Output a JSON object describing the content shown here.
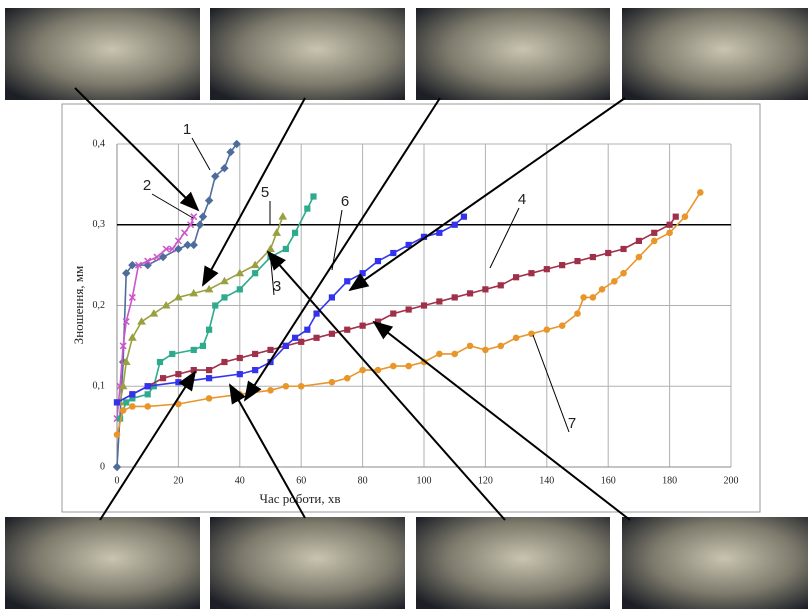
{
  "chart_data": {
    "type": "line",
    "xlabel": "Час роботи, хв",
    "ylabel": "Зношення, мм",
    "xlim": [
      0,
      200
    ],
    "xticks": [
      0,
      20,
      40,
      60,
      80,
      100,
      120,
      140,
      160,
      180,
      200
    ],
    "ylim": [
      0,
      0.4
    ],
    "yticks": [
      0,
      {
        "value": 0.1,
        "label": "0,1"
      },
      {
        "value": 0.2,
        "label": "0,2"
      },
      {
        "value": 0.3,
        "label": "0,3"
      },
      {
        "value": 0.4,
        "label": "0,4"
      }
    ],
    "grid": true,
    "reference_line": 0.3,
    "series": [
      {
        "name": "1",
        "color": "#4f6d9a",
        "marker": "diamond",
        "x": [
          0,
          2,
          3,
          5,
          10,
          15,
          20,
          23,
          25,
          27,
          28,
          30,
          32,
          35,
          37,
          39
        ],
        "values": [
          0,
          0.13,
          0.24,
          0.25,
          0.25,
          0.26,
          0.27,
          0.275,
          0.275,
          0.3,
          0.31,
          0.33,
          0.36,
          0.37,
          0.39,
          0.4
        ]
      },
      {
        "name": "2",
        "color": "#cc55cc",
        "marker": "x",
        "x": [
          0,
          1,
          2,
          3,
          5,
          7,
          10,
          13,
          16,
          18,
          20,
          22,
          24,
          25
        ],
        "values": [
          0.06,
          0.1,
          0.15,
          0.18,
          0.21,
          0.25,
          0.255,
          0.26,
          0.27,
          0.27,
          0.28,
          0.29,
          0.3,
          0.31
        ]
      },
      {
        "name": "3",
        "color": "#2eaa8c",
        "marker": "square",
        "x": [
          1,
          3,
          5,
          10,
          12,
          14,
          18,
          25,
          28,
          30,
          32,
          35,
          40,
          45,
          50,
          55,
          58,
          62,
          64
        ],
        "values": [
          0.06,
          0.08,
          0.085,
          0.09,
          0.1,
          0.13,
          0.14,
          0.145,
          0.15,
          0.17,
          0.2,
          0.21,
          0.22,
          0.24,
          0.26,
          0.27,
          0.29,
          0.32,
          0.335
        ]
      },
      {
        "name": "4",
        "color": "#a0304a",
        "marker": "square",
        "x": [
          0,
          5,
          10,
          15,
          20,
          25,
          30,
          35,
          40,
          45,
          50,
          55,
          60,
          65,
          70,
          75,
          80,
          85,
          90,
          95,
          100,
          105,
          110,
          115,
          120,
          125,
          130,
          135,
          140,
          145,
          150,
          155,
          160,
          165,
          170,
          175,
          180,
          182
        ],
        "values": [
          0.08,
          0.09,
          0.1,
          0.11,
          0.115,
          0.12,
          0.12,
          0.13,
          0.135,
          0.14,
          0.145,
          0.15,
          0.155,
          0.16,
          0.165,
          0.17,
          0.175,
          0.18,
          0.19,
          0.195,
          0.2,
          0.205,
          0.21,
          0.215,
          0.22,
          0.225,
          0.235,
          0.24,
          0.245,
          0.25,
          0.255,
          0.26,
          0.265,
          0.27,
          0.28,
          0.29,
          0.3,
          0.31
        ]
      },
      {
        "name": "5",
        "color": "#9aa040",
        "marker": "triangle",
        "x": [
          1,
          2,
          3,
          5,
          8,
          12,
          16,
          20,
          25,
          30,
          35,
          40,
          45,
          50,
          52,
          54
        ],
        "values": [
          0.08,
          0.1,
          0.13,
          0.16,
          0.18,
          0.19,
          0.2,
          0.21,
          0.215,
          0.22,
          0.23,
          0.24,
          0.25,
          0.27,
          0.29,
          0.31
        ]
      },
      {
        "name": "6",
        "color": "#3333ee",
        "marker": "square",
        "x": [
          0,
          5,
          10,
          20,
          30,
          40,
          45,
          50,
          55,
          58,
          62,
          65,
          70,
          75,
          80,
          85,
          90,
          95,
          100,
          105,
          110,
          113
        ],
        "values": [
          0.08,
          0.09,
          0.1,
          0.105,
          0.11,
          0.115,
          0.12,
          0.13,
          0.15,
          0.16,
          0.17,
          0.19,
          0.21,
          0.23,
          0.24,
          0.255,
          0.265,
          0.275,
          0.285,
          0.29,
          0.3,
          0.31
        ]
      },
      {
        "name": "7",
        "color": "#e8962a",
        "marker": "circle",
        "x": [
          0,
          2,
          5,
          10,
          20,
          30,
          40,
          50,
          55,
          60,
          70,
          75,
          80,
          85,
          90,
          95,
          100,
          105,
          110,
          115,
          120,
          125,
          130,
          135,
          140,
          145,
          150,
          152,
          155,
          158,
          162,
          165,
          170,
          175,
          180,
          185,
          190
        ],
        "values": [
          0.04,
          0.07,
          0.075,
          0.075,
          0.078,
          0.085,
          0.09,
          0.095,
          0.1,
          0.1,
          0.105,
          0.11,
          0.12,
          0.12,
          0.125,
          0.125,
          0.13,
          0.14,
          0.14,
          0.15,
          0.145,
          0.15,
          0.16,
          0.165,
          0.17,
          0.175,
          0.19,
          0.21,
          0.21,
          0.22,
          0.23,
          0.24,
          0.26,
          0.28,
          0.29,
          0.31,
          0.34
        ]
      }
    ]
  }
}
